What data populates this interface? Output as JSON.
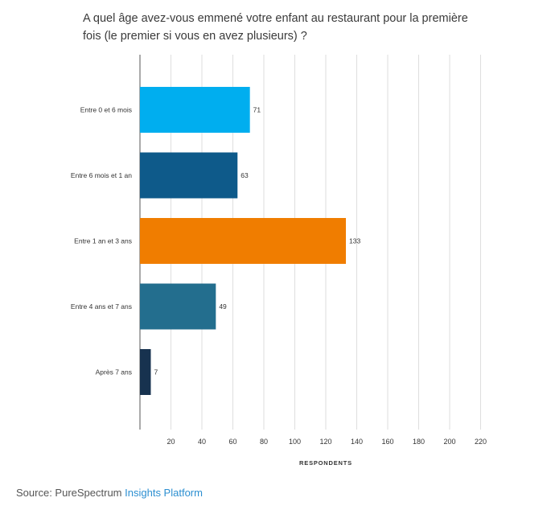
{
  "question": {
    "line1": "A quel âge avez-vous emmené votre enfant au restaurant pour la première",
    "line2": "fois (le premier si vous en avez plusieurs) ?"
  },
  "source": {
    "prefix": "Source: PureSpectrum",
    "link": "Insights Platform"
  },
  "chart_data": {
    "type": "bar",
    "orientation": "horizontal",
    "categories": [
      "Entre 0 et 6 mois",
      "Entre 6 mois et 1 an",
      "Entre 1 an et 3 ans",
      "Entre 4 ans et 7 ans",
      "Après 7 ans"
    ],
    "values": [
      71,
      63,
      133,
      49,
      7
    ],
    "colors": [
      "#00aeef",
      "#0e5a8a",
      "#f07d00",
      "#236e8e",
      "#17324f"
    ],
    "xlabel": "RESPONDENTS",
    "xticks": [
      20,
      40,
      60,
      80,
      100,
      120,
      140,
      160,
      180,
      200,
      220
    ],
    "xlim": [
      0,
      240
    ],
    "grid": true,
    "data_labels": [
      "71",
      "63",
      "133",
      "49",
      "7"
    ]
  }
}
